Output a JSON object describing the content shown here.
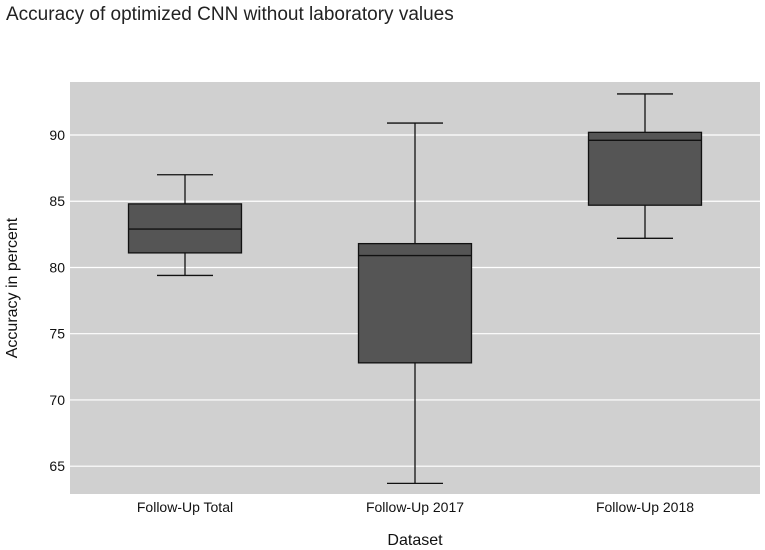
{
  "chart_data": {
    "type": "box",
    "title": "Accuracy of optimized CNN without laboratory values",
    "xlabel": "Dataset",
    "ylabel": "Accuracy in percent",
    "ylim": [
      62.9,
      94.0
    ],
    "yticks": [
      65,
      70,
      75,
      80,
      85,
      90
    ],
    "grid": true,
    "legend": "none",
    "categories": [
      "Follow-Up Total",
      "Follow-Up 2017",
      "Follow-Up 2018"
    ],
    "boxes": [
      {
        "name": "Follow-Up Total",
        "whisker_low": 79.4,
        "q1": 81.1,
        "median": 82.9,
        "q3": 84.8,
        "whisker_high": 87.0
      },
      {
        "name": "Follow-Up 2017",
        "whisker_low": 63.7,
        "q1": 72.8,
        "median": 80.9,
        "q3": 81.8,
        "whisker_high": 90.9
      },
      {
        "name": "Follow-Up 2018",
        "whisker_low": 82.2,
        "q1": 84.7,
        "median": 89.6,
        "q3": 90.2,
        "whisker_high": 93.1
      }
    ]
  },
  "colors": {
    "panel_bg": "#d0d0d0",
    "grid": "#ffffff",
    "box_fill": "#555555",
    "box_stroke": "#111111"
  }
}
